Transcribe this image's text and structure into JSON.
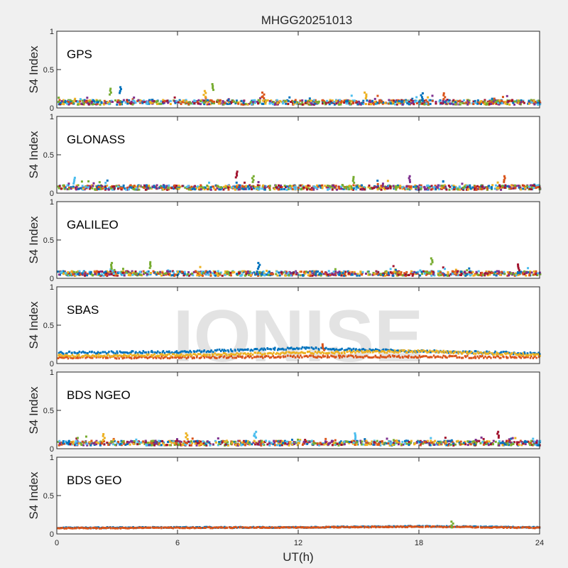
{
  "chart_data": {
    "type": "scatter",
    "title": "MHGG20251013",
    "xlabel": "UT(h)",
    "xlim": [
      0,
      24
    ],
    "xticks": [
      "0",
      "6",
      "12",
      "18",
      "24"
    ],
    "watermark": "IONISE",
    "colors": [
      "#0072BD",
      "#D95319",
      "#EDB120",
      "#7E2F8E",
      "#77AC30",
      "#4DBEEE",
      "#A2142F"
    ],
    "subplots": [
      {
        "label": "GPS",
        "ylabel": "S4 Index",
        "ylim": [
          0,
          1
        ],
        "yticks": [
          "0",
          "0.5",
          "1"
        ],
        "typical_s4": 0.07,
        "noise": 0.03,
        "series_count": 7,
        "spikes": [
          [
            2.6,
            0.25
          ],
          [
            3.1,
            0.27
          ],
          [
            7.7,
            0.31
          ],
          [
            7.3,
            0.22
          ],
          [
            10.2,
            0.2
          ],
          [
            15.3,
            0.2
          ],
          [
            18.1,
            0.19
          ],
          [
            19.2,
            0.19
          ]
        ]
      },
      {
        "label": "GLONASS",
        "ylabel": "S4 Index",
        "ylim": [
          0,
          1
        ],
        "yticks": [
          "0",
          "0.5",
          "1"
        ],
        "typical_s4": 0.07,
        "noise": 0.03,
        "series_count": 7,
        "spikes": [
          [
            0.8,
            0.2
          ],
          [
            8.9,
            0.28
          ],
          [
            9.7,
            0.22
          ],
          [
            14.7,
            0.21
          ],
          [
            17.5,
            0.22
          ],
          [
            22.2,
            0.22
          ]
        ]
      },
      {
        "label": "GALILEO",
        "ylabel": "S4 Index",
        "ylim": [
          0,
          1
        ],
        "yticks": [
          "0",
          "0.5",
          "1"
        ],
        "typical_s4": 0.06,
        "noise": 0.03,
        "series_count": 7,
        "spikes": [
          [
            2.7,
            0.2
          ],
          [
            4.6,
            0.21
          ],
          [
            10.0,
            0.2
          ],
          [
            18.6,
            0.26
          ],
          [
            22.9,
            0.18
          ]
        ]
      },
      {
        "label": "SBAS",
        "ylabel": "S4 Index",
        "ylim": [
          0,
          1
        ],
        "yticks": [
          "0",
          "0.5",
          "1"
        ],
        "typical_s4": 0.12,
        "noise": 0.015,
        "series_count": 3,
        "levels": [
          [
            0.14,
            0.15,
            0.2,
            0.16,
            0.13
          ],
          [
            0.08,
            0.08,
            0.09,
            0.09,
            0.08
          ],
          [
            0.1,
            0.11,
            0.14,
            0.16,
            0.11
          ]
        ],
        "spikes": [
          [
            13.2,
            0.25
          ]
        ]
      },
      {
        "label": "BDS NGEO",
        "ylabel": "S4 Index",
        "ylim": [
          0,
          1
        ],
        "yticks": [
          "0",
          "0.5",
          "1"
        ],
        "typical_s4": 0.07,
        "noise": 0.03,
        "series_count": 7,
        "spikes": [
          [
            2.3,
            0.19
          ],
          [
            6.4,
            0.2
          ],
          [
            9.8,
            0.22
          ],
          [
            14.8,
            0.2
          ],
          [
            21.9,
            0.22
          ]
        ]
      },
      {
        "label": "BDS GEO",
        "ylabel": "S4 Index",
        "ylim": [
          0,
          1
        ],
        "yticks": [
          "0",
          "0.5",
          "1"
        ],
        "typical_s4": 0.08,
        "noise": 0.006,
        "series_count": 2,
        "levels": [
          [
            0.08,
            0.085,
            0.085,
            0.1,
            0.085
          ],
          [
            0.075,
            0.08,
            0.085,
            0.095,
            0.08
          ]
        ],
        "spikes": [
          [
            19.6,
            0.16
          ]
        ]
      }
    ]
  }
}
